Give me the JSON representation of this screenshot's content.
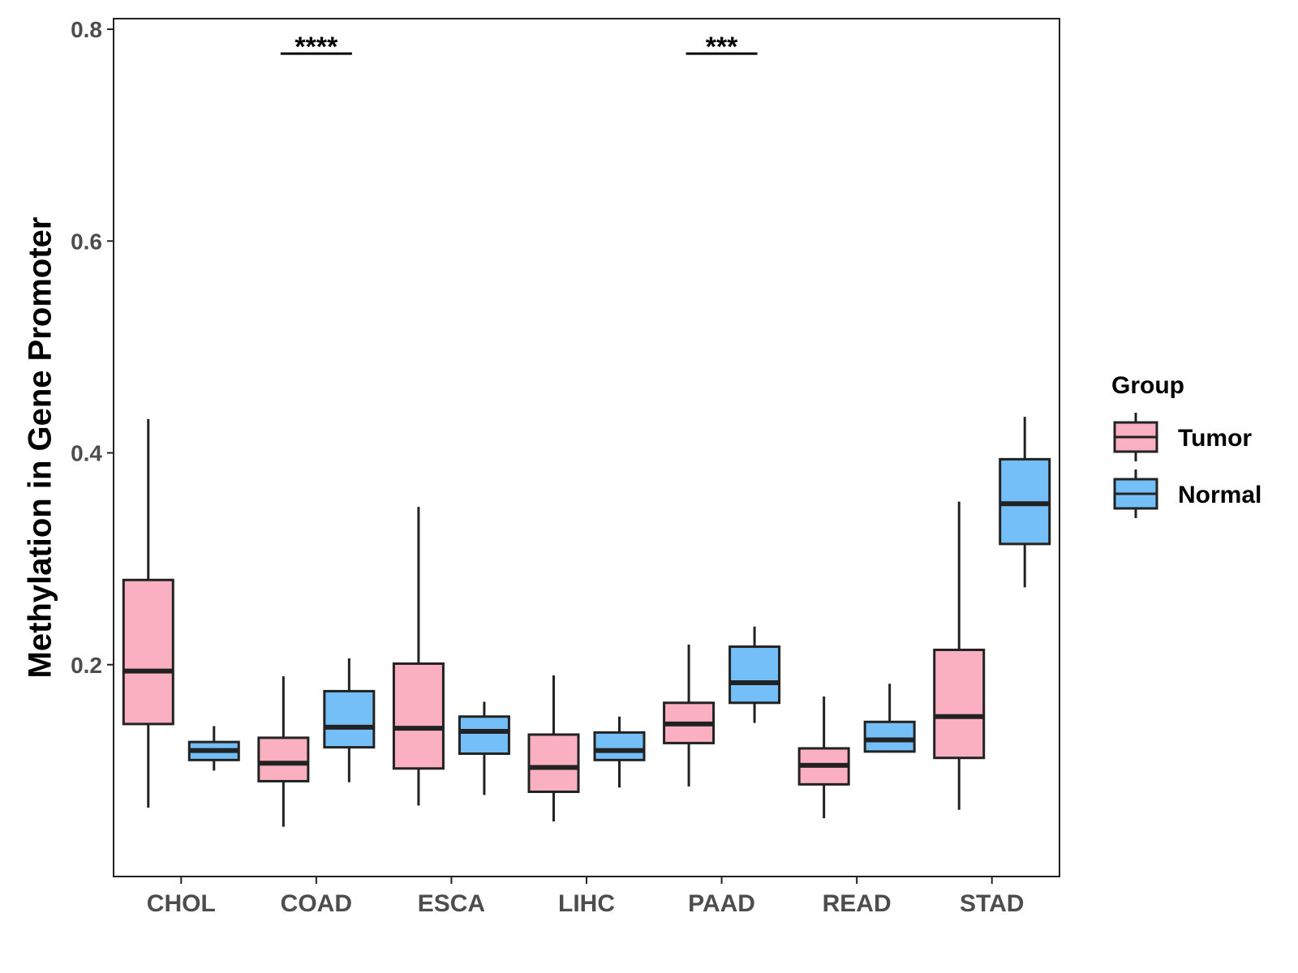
{
  "chart_data": {
    "type": "boxplot",
    "title": "",
    "xlabel": "",
    "ylabel": "Methylation in Gene Promoter",
    "ylim": [
      0.0,
      0.81
    ],
    "yticks": [
      "0.2",
      "0.4",
      "0.6",
      "0.8"
    ],
    "grid": false,
    "legend": {
      "title": "Group",
      "position": "right",
      "entries": [
        "Tumor",
        "Normal"
      ]
    },
    "categories": [
      "CHOL",
      "COAD",
      "ESCA",
      "LIHC",
      "PAAD",
      "READ",
      "STAD"
    ],
    "series": [
      {
        "name": "Tumor",
        "color": "#FBB0C2",
        "boxes": [
          {
            "min": 0.065,
            "q1": 0.144,
            "median": 0.194,
            "q3": 0.28,
            "max": 0.432
          },
          {
            "min": 0.047,
            "q1": 0.09,
            "median": 0.107,
            "q3": 0.131,
            "max": 0.189
          },
          {
            "min": 0.067,
            "q1": 0.102,
            "median": 0.14,
            "q3": 0.201,
            "max": 0.349
          },
          {
            "min": 0.052,
            "q1": 0.08,
            "median": 0.103,
            "q3": 0.134,
            "max": 0.19
          },
          {
            "min": 0.085,
            "q1": 0.126,
            "median": 0.144,
            "q3": 0.164,
            "max": 0.219
          },
          {
            "min": 0.055,
            "q1": 0.087,
            "median": 0.105,
            "q3": 0.121,
            "max": 0.17
          },
          {
            "min": 0.063,
            "q1": 0.112,
            "median": 0.151,
            "q3": 0.214,
            "max": 0.354
          }
        ]
      },
      {
        "name": "Normal",
        "color": "#74BFF7",
        "boxes": [
          {
            "min": 0.1,
            "q1": 0.11,
            "median": 0.119,
            "q3": 0.127,
            "max": 0.142
          },
          {
            "min": 0.089,
            "q1": 0.122,
            "median": 0.141,
            "q3": 0.175,
            "max": 0.206
          },
          {
            "min": 0.077,
            "q1": 0.116,
            "median": 0.137,
            "q3": 0.151,
            "max": 0.165
          },
          {
            "min": 0.084,
            "q1": 0.11,
            "median": 0.119,
            "q3": 0.136,
            "max": 0.151
          },
          {
            "min": 0.145,
            "q1": 0.164,
            "median": 0.183,
            "q3": 0.217,
            "max": 0.236
          },
          {
            "min": 0.117,
            "q1": 0.118,
            "median": 0.129,
            "q3": 0.146,
            "max": 0.182
          },
          {
            "min": 0.273,
            "q1": 0.314,
            "median": 0.352,
            "q3": 0.394,
            "max": 0.434
          }
        ]
      }
    ],
    "annotations": [
      {
        "category": "COAD",
        "label": "****",
        "y": 0.777
      },
      {
        "category": "PAAD",
        "label": "***",
        "y": 0.777
      }
    ]
  }
}
